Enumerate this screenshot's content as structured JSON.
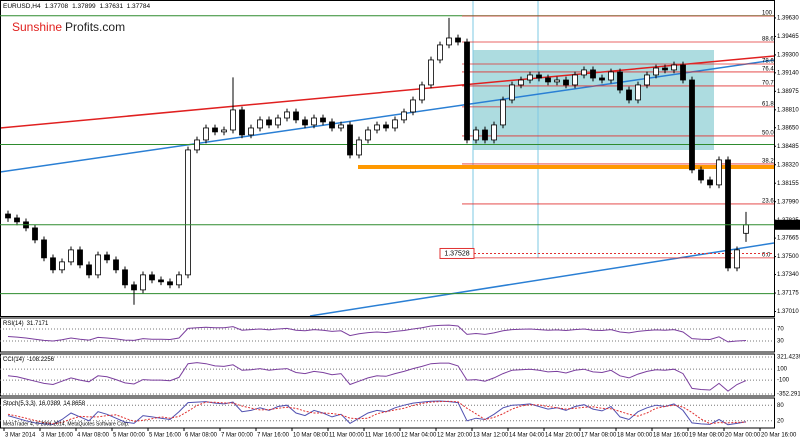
{
  "chart_data": {
    "type": "candlestick",
    "symbol": "EURUSD,H4",
    "brand": {
      "part1": "Sunshine",
      "part2": "Profits.com"
    },
    "copyright": "MetaTrader 4, © 2001-2014, MetaQuotes Software Corp.",
    "categories": [
      "3 Mar 2014",
      null,
      null,
      null,
      "3 Mar 16:00",
      null,
      null,
      null,
      "4 Mar 08:00",
      null,
      null,
      null,
      "5 Mar 00:00",
      null,
      null,
      null,
      "5 Mar 16:00",
      null,
      null,
      null,
      "6 Mar 08:00",
      null,
      null,
      null,
      "7 Mar 00:00",
      null,
      null,
      null,
      "7 Mar 16:00",
      null,
      null,
      null,
      "10 Mar 08:00",
      null,
      null,
      null,
      "11 Mar 00:00",
      null,
      null,
      null,
      "11 Mar 16:00",
      null,
      null,
      null,
      "12 Mar 04:00",
      null,
      null,
      null,
      "12 Mar 20:00",
      null,
      null,
      null,
      "13 Mar 12:00",
      null,
      null,
      null,
      "14 Mar 04:00",
      null,
      null,
      null,
      "14 Mar 20:00",
      null,
      null,
      null,
      "17 Mar 08:00",
      null,
      null,
      null,
      "18 Mar 00:00",
      null,
      null,
      null,
      "18 Mar 16:00",
      null,
      null,
      null,
      "19 Mar 08:00",
      null,
      null,
      null,
      "20 Mar 00:00",
      null,
      null,
      null,
      "20 Mar 16:00"
    ],
    "open": [
      1.3788,
      1.37845,
      1.3781,
      1.37756,
      1.37649,
      1.37489,
      1.37382,
      1.37453,
      1.3756,
      1.37426,
      1.37337,
      1.37515,
      1.37471,
      1.37382,
      1.37248,
      1.37203,
      1.37337,
      1.37292,
      1.37275,
      1.37248,
      1.37337,
      1.38452,
      1.38541,
      1.38648,
      1.38613,
      1.3863,
      1.38809,
      1.38586,
      1.38648,
      1.3872,
      1.38675,
      1.38737,
      1.38791,
      1.3872,
      1.38675,
      1.38737,
      1.38702,
      1.38648,
      1.38675,
      1.38407,
      1.38541,
      1.3863,
      1.38675,
      1.38648,
      1.3872,
      1.38791,
      1.38898,
      1.39032,
      1.39255,
      1.39389,
      1.39451,
      1.39415,
      1.38541,
      1.3863,
      1.38541,
      1.38675,
      1.38898,
      1.39032,
      1.39076,
      1.39121,
      1.39094,
      1.39059,
      1.39076,
      1.39032,
      1.39121,
      1.39166,
      1.39094,
      1.39076,
      1.39148,
      1.38987,
      1.38898,
      1.39032,
      1.39121,
      1.39183,
      1.39166,
      1.3921,
      1.39076,
      1.38274,
      1.38184,
      1.3814,
      1.38363,
      1.37399,
      1.37708,
      null,
      null
    ],
    "high": [
      1.3791,
      1.37875,
      1.3784,
      1.37786,
      1.37679,
      1.37519,
      1.37483,
      1.3759,
      1.3759,
      1.37456,
      1.37545,
      1.37545,
      1.37501,
      1.37412,
      1.37278,
      1.37367,
      1.37367,
      1.37322,
      1.37305,
      1.37367,
      1.38482,
      1.38571,
      1.38678,
      1.38678,
      1.3866,
      1.391,
      1.38839,
      1.38678,
      1.3875,
      1.3875,
      1.38767,
      1.38821,
      1.38821,
      1.3875,
      1.38767,
      1.38767,
      1.38732,
      1.38705,
      1.38705,
      1.38571,
      1.3866,
      1.38705,
      1.38705,
      1.3875,
      1.38821,
      1.38928,
      1.39062,
      1.39285,
      1.39419,
      1.3963,
      1.39481,
      1.39445,
      1.3866,
      1.3866,
      1.38705,
      1.38928,
      1.39062,
      1.39106,
      1.39151,
      1.39151,
      1.39124,
      1.39106,
      1.39106,
      1.39151,
      1.39196,
      1.39196,
      1.39124,
      1.39178,
      1.39178,
      1.39017,
      1.39062,
      1.39151,
      1.39213,
      1.39213,
      1.3924,
      1.3924,
      1.39106,
      1.38304,
      1.38214,
      1.38393,
      1.38393,
      1.3759,
      1.37899,
      null,
      null
    ],
    "low": [
      1.3781,
      1.3778,
      1.37726,
      1.37619,
      1.37459,
      1.37352,
      1.37352,
      1.37423,
      1.37396,
      1.37307,
      1.37307,
      1.37441,
      1.37352,
      1.37218,
      1.3707,
      1.37173,
      1.37262,
      1.37245,
      1.37218,
      1.37218,
      1.37307,
      1.38422,
      1.38511,
      1.38583,
      1.38583,
      1.386,
      1.38556,
      1.38556,
      1.38618,
      1.38645,
      1.38645,
      1.38707,
      1.3869,
      1.38645,
      1.38645,
      1.38672,
      1.38618,
      1.38618,
      1.38377,
      1.38377,
      1.38511,
      1.386,
      1.38618,
      1.38618,
      1.3869,
      1.38761,
      1.38868,
      1.39002,
      1.39225,
      1.39359,
      1.39385,
      1.38511,
      1.38511,
      1.38511,
      1.38511,
      1.38645,
      1.38868,
      1.39002,
      1.39046,
      1.39064,
      1.39029,
      1.39029,
      1.39002,
      1.39002,
      1.39091,
      1.39064,
      1.39046,
      1.39046,
      1.38957,
      1.38868,
      1.38868,
      1.39002,
      1.39091,
      1.39136,
      1.39136,
      1.39046,
      1.38244,
      1.38154,
      1.3811,
      1.3811,
      1.37369,
      1.37369,
      1.37631,
      null,
      null
    ],
    "close": [
      1.37845,
      1.3781,
      1.37756,
      1.37649,
      1.37489,
      1.37382,
      1.37453,
      1.3756,
      1.37426,
      1.37337,
      1.37515,
      1.37471,
      1.37382,
      1.37248,
      1.37203,
      1.37337,
      1.37292,
      1.37275,
      1.37248,
      1.37337,
      1.38452,
      1.38541,
      1.38648,
      1.38613,
      1.3863,
      1.38809,
      1.38586,
      1.38648,
      1.3872,
      1.38675,
      1.38737,
      1.38791,
      1.3872,
      1.38675,
      1.38737,
      1.38702,
      1.38648,
      1.38675,
      1.38407,
      1.38541,
      1.3863,
      1.38675,
      1.38648,
      1.3872,
      1.38791,
      1.38898,
      1.39032,
      1.39255,
      1.39389,
      1.39451,
      1.39415,
      1.38541,
      1.3863,
      1.38541,
      1.38675,
      1.38898,
      1.39032,
      1.39076,
      1.39121,
      1.39094,
      1.39059,
      1.39076,
      1.39032,
      1.39121,
      1.39166,
      1.39094,
      1.39076,
      1.39148,
      1.38987,
      1.38898,
      1.39032,
      1.39121,
      1.39183,
      1.39166,
      1.3921,
      1.39076,
      1.38274,
      1.38184,
      1.3814,
      1.38363,
      1.37399,
      1.3756,
      1.37784,
      null,
      null
    ],
    "bull_color": "#ffffff",
    "bear_color": "#000000",
    "ylim": [
      1.3697,
      1.3979
    ],
    "yticks": [
      {
        "value": 1.3963,
        "label": "1.39630"
      },
      {
        "value": 1.39465,
        "label": "1.39465"
      },
      {
        "value": 1.393,
        "label": "1.39300"
      },
      {
        "value": 1.3914,
        "label": "1.39140"
      },
      {
        "value": 1.38975,
        "label": "1.38975"
      },
      {
        "value": 1.3881,
        "label": "1.38810"
      },
      {
        "value": 1.3865,
        "label": "1.38650"
      },
      {
        "value": 1.38485,
        "label": "1.38485"
      },
      {
        "value": 1.3832,
        "label": "1.38320"
      },
      {
        "value": 1.38155,
        "label": "1.38155"
      },
      {
        "value": 1.3799,
        "label": "1.37990"
      },
      {
        "value": 1.37825,
        "label": "1.37825"
      },
      {
        "value": 1.37665,
        "label": "1.37665"
      },
      {
        "value": 1.375,
        "label": "1.37500"
      },
      {
        "value": 1.3734,
        "label": "1.37340"
      },
      {
        "value": 1.37175,
        "label": "1.37175"
      },
      {
        "value": 1.3701,
        "label": "1.37010"
      }
    ],
    "fibonacci": {
      "color": "#e03030",
      "levels": [
        {
          "label": "100",
          "price": 1.39647
        },
        {
          "label": "88.6",
          "price": 1.39415
        },
        {
          "label": "78.6",
          "price": 1.39219
        },
        {
          "label": "76.4",
          "price": 1.39148
        },
        {
          "label": "70.7",
          "price": 1.39023
        },
        {
          "label": "61.8",
          "price": 1.38836
        },
        {
          "label": "50.0",
          "price": 1.38577
        },
        {
          "label": "38.2",
          "price": 1.38327
        },
        {
          "label": "23.6",
          "price": 1.3797
        },
        {
          "label": "0.0",
          "price": 1.37489
        }
      ]
    },
    "level_color": "#2e8b2e",
    "green_levels": [
      1.3965,
      1.385,
      1.3717
    ],
    "orange_level": 1.383,
    "annotation_price": 1.37528,
    "rsi": {
      "title": "RSI(14)",
      "ylim": [
        0,
        100
      ],
      "yticks": [
        70,
        30
      ],
      "lines": [
        {
          "color": "#7b3f9e",
          "values": [
            45,
            43,
            40,
            36,
            32,
            30,
            34,
            40,
            36,
            33,
            42,
            40,
            37,
            33,
            32,
            38,
            36,
            36,
            35,
            40,
            72,
            74,
            76,
            74,
            74,
            78,
            66,
            68,
            70,
            67,
            70,
            72,
            66,
            64,
            68,
            66,
            62,
            64,
            48,
            54,
            58,
            60,
            58,
            62,
            65,
            70,
            74,
            80,
            82,
            83,
            80,
            52,
            55,
            52,
            57,
            64,
            68,
            69,
            70,
            68,
            66,
            67,
            65,
            68,
            70,
            66,
            65,
            68,
            60,
            57,
            62,
            65,
            67,
            66,
            68,
            60,
            38,
            36,
            35,
            44,
            27,
            30,
            31.7171,
            null,
            null
          ]
        }
      ]
    },
    "cci": {
      "title": "CCI(14)",
      "ylim": [
        -352.2918,
        321.4239
      ],
      "yticks": [
        321.4239,
        100,
        -100,
        -352.2918
      ],
      "lines": [
        {
          "color": "#7b3f9e",
          "values": [
            -20,
            -40,
            -80,
            -120,
            -160,
            -180,
            -120,
            -60,
            -100,
            -130,
            -20,
            -40,
            -90,
            -150,
            -170,
            -90,
            -100,
            -100,
            -110,
            -50,
            200,
            220,
            200,
            160,
            150,
            180,
            80,
            90,
            110,
            80,
            100,
            110,
            40,
            20,
            60,
            40,
            0,
            20,
            -180,
            -120,
            -60,
            -20,
            -30,
            20,
            60,
            110,
            150,
            200,
            210,
            210,
            160,
            -100,
            -90,
            -120,
            -60,
            20,
            80,
            90,
            100,
            80,
            50,
            60,
            30,
            80,
            100,
            50,
            40,
            80,
            -20,
            -60,
            10,
            60,
            90,
            80,
            100,
            20,
            -250,
            -270,
            -280,
            -160,
            -300,
            -180,
            -108.2256,
            null,
            null
          ]
        }
      ]
    },
    "stoch": {
      "title": "Stoch(5,3,3)",
      "ylim": [
        0,
        100
      ],
      "yticks": [
        80,
        20
      ],
      "lines": [
        {
          "color": "#5050b0",
          "values": [
            40,
            30,
            20,
            12,
            8,
            6,
            25,
            50,
            35,
            20,
            55,
            45,
            30,
            15,
            10,
            40,
            35,
            30,
            25,
            55,
            90,
            92,
            94,
            88,
            85,
            92,
            55,
            60,
            70,
            60,
            75,
            80,
            50,
            40,
            60,
            50,
            35,
            45,
            10,
            30,
            50,
            60,
            55,
            70,
            80,
            88,
            92,
            95,
            96,
            94,
            90,
            20,
            30,
            25,
            45,
            70,
            80,
            82,
            85,
            75,
            65,
            70,
            60,
            75,
            82,
            65,
            58,
            75,
            35,
            25,
            55,
            70,
            80,
            75,
            85,
            60,
            12,
            8,
            6,
            25,
            5,
            10,
            16.0389,
            null,
            null
          ]
        },
        {
          "color": "#e03030",
          "dashed": true,
          "values": [
            45,
            38,
            30,
            21,
            13,
            9,
            13,
            27,
            37,
            35,
            35,
            40,
            43,
            30,
            18,
            22,
            28,
            35,
            30,
            37,
            57,
            79,
            92,
            91,
            89,
            88,
            77,
            69,
            62,
            63,
            68,
            72,
            68,
            57,
            50,
            50,
            48,
            43,
            30,
            28,
            30,
            47,
            55,
            62,
            68,
            79,
            87,
            92,
            94,
            95,
            93,
            68,
            47,
            25,
            33,
            47,
            65,
            77,
            82,
            81,
            75,
            70,
            65,
            68,
            72,
            74,
            68,
            66,
            56,
            45,
            38,
            50,
            68,
            75,
            80,
            73,
            52,
            27,
            9,
            13,
            12,
            14,
            14.8658,
            null,
            null
          ]
        }
      ]
    }
  }
}
